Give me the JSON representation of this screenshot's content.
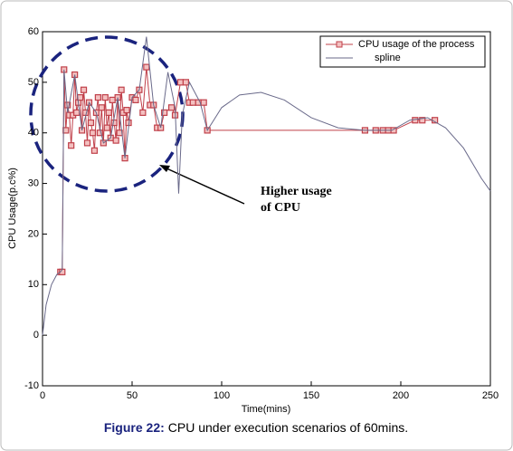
{
  "chart_data": {
    "type": "line",
    "xlabel": "Time(mins)",
    "ylabel": "CPU Usage(p.c%)",
    "xlim": [
      0,
      250
    ],
    "xticks": [
      0,
      50,
      100,
      150,
      200,
      250
    ],
    "ylim": [
      -10,
      60
    ],
    "yticks": [
      -10,
      0,
      10,
      20,
      30,
      40,
      50,
      60
    ],
    "grid": false,
    "series": [
      {
        "name": "CPU usage of the process",
        "color": "#c0404a",
        "marker": "square",
        "x": [
          10,
          11,
          12,
          13,
          14,
          15,
          16,
          17,
          18,
          19,
          20,
          21,
          22,
          23,
          24,
          25,
          26,
          27,
          28,
          29,
          30,
          31,
          32,
          33,
          34,
          35,
          36,
          37,
          38,
          39,
          40,
          41,
          42,
          43,
          44,
          45,
          46,
          47,
          48,
          50,
          52,
          54,
          56,
          58,
          60,
          62,
          64,
          66,
          68,
          72,
          74,
          77,
          80,
          82,
          84,
          87,
          90,
          92,
          180,
          186,
          190,
          193,
          196,
          208,
          212,
          219
        ],
        "values": [
          12.5,
          12.5,
          52.5,
          40.5,
          45.5,
          43.5,
          37.5,
          43.5,
          51.5,
          44,
          46,
          47,
          40.5,
          48.5,
          44,
          38,
          46,
          42,
          40,
          36.5,
          44,
          47,
          40,
          45,
          38,
          47,
          41,
          44,
          39,
          46.5,
          42,
          38.5,
          47,
          40,
          48.5,
          44,
          35,
          44.5,
          42,
          47,
          46.5,
          48.5,
          44,
          53,
          45.5,
          45.5,
          41,
          41,
          44,
          45,
          43.5,
          50,
          50,
          46,
          46,
          46,
          46,
          40.5,
          40.5,
          40.5,
          40.5,
          40.5,
          40.5,
          42.5,
          42.5,
          42.5
        ]
      },
      {
        "name": "spline",
        "color": "#6a6a8a",
        "x": [
          0,
          2,
          5,
          8,
          10,
          11,
          12,
          14,
          18,
          22,
          26,
          30,
          34,
          38,
          42,
          46,
          50,
          54,
          58,
          62,
          66,
          70,
          74,
          76,
          78,
          82,
          88,
          92,
          100,
          110,
          122,
          135,
          150,
          165,
          180,
          195,
          205,
          215,
          225,
          235,
          245,
          250
        ],
        "values": [
          0,
          6,
          10,
          12,
          12.5,
          13,
          52.5,
          44,
          51.5,
          40.5,
          46,
          44,
          38,
          39,
          47,
          35,
          47,
          48.5,
          59,
          45.5,
          41,
          52,
          45,
          28,
          43.5,
          50,
          46,
          40.5,
          45,
          47.5,
          48,
          46.5,
          43,
          41,
          40.5,
          40.5,
          42.5,
          43,
          41,
          37,
          31,
          28.5
        ]
      }
    ],
    "legend": "upper-right",
    "annotation": [
      "Higher usage",
      "of CPU"
    ],
    "caption_label": "Figure 22:",
    "caption": "CPU under execution scenarios of 60mins."
  }
}
